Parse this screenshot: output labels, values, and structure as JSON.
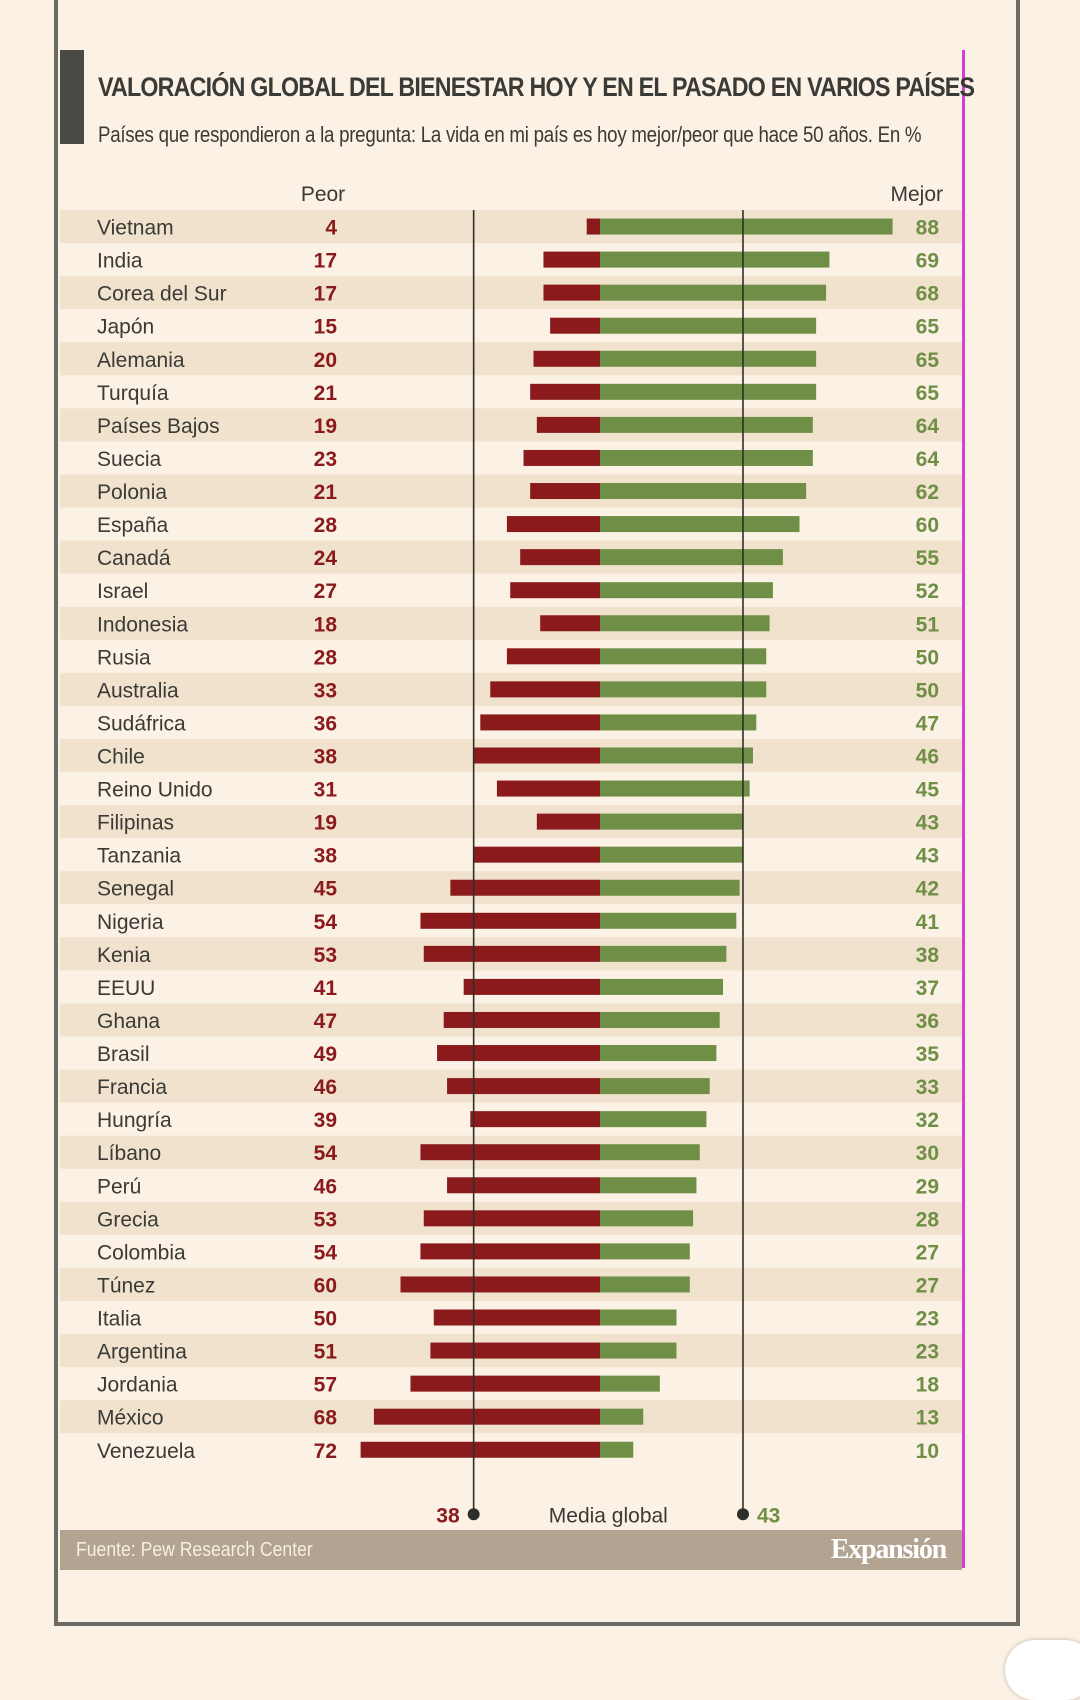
{
  "title": "VALORACIÓN GLOBAL DEL BIENESTAR HOY Y EN EL PASADO EN VARIOS PAÍSES",
  "subtitle": "Países que respondieron a la pregunta: La vida en mi país es hoy mejor/peor que hace 50 años. En %",
  "footer": {
    "source": "Fuente: Pew Research Center",
    "brand": "Expansión"
  },
  "colors": {
    "worse": "#8b1a1c",
    "better": "#6e8f45",
    "band": "#f0e2cd",
    "accent": "#d63fd6"
  },
  "chart_data": {
    "type": "bar",
    "header_left": "Peor",
    "header_right": "Mejor",
    "categories": [
      "Vietnam",
      "India",
      "Corea del Sur",
      "Japón",
      "Alemania",
      "Turquía",
      "Países Bajos",
      "Suecia",
      "Polonia",
      "España",
      "Canadá",
      "Israel",
      "Indonesia",
      "Rusia",
      "Australia",
      "Sudáfrica",
      "Chile",
      "Reino Unido",
      "Filipinas",
      "Tanzania",
      "Senegal",
      "Nigeria",
      "Kenia",
      "EEUU",
      "Ghana",
      "Brasil",
      "Francia",
      "Hungría",
      "Líbano",
      "Perú",
      "Grecia",
      "Colombia",
      "Túnez",
      "Italia",
      "Argentina",
      "Jordania",
      "México",
      "Venezuela"
    ],
    "series": [
      {
        "name": "Peor",
        "values": [
          4,
          17,
          17,
          15,
          20,
          21,
          19,
          23,
          21,
          28,
          24,
          27,
          18,
          28,
          33,
          36,
          38,
          31,
          19,
          38,
          45,
          54,
          53,
          41,
          47,
          49,
          46,
          39,
          54,
          46,
          53,
          54,
          60,
          50,
          51,
          57,
          68,
          72
        ]
      },
      {
        "name": "Mejor",
        "values": [
          88,
          69,
          68,
          65,
          65,
          65,
          64,
          64,
          62,
          60,
          55,
          52,
          51,
          50,
          50,
          47,
          46,
          45,
          43,
          43,
          42,
          41,
          38,
          37,
          36,
          35,
          33,
          32,
          30,
          29,
          28,
          27,
          27,
          23,
          23,
          18,
          13,
          10
        ]
      }
    ],
    "reference": {
      "label": "Media global",
      "worse": 38,
      "better": 43
    }
  }
}
